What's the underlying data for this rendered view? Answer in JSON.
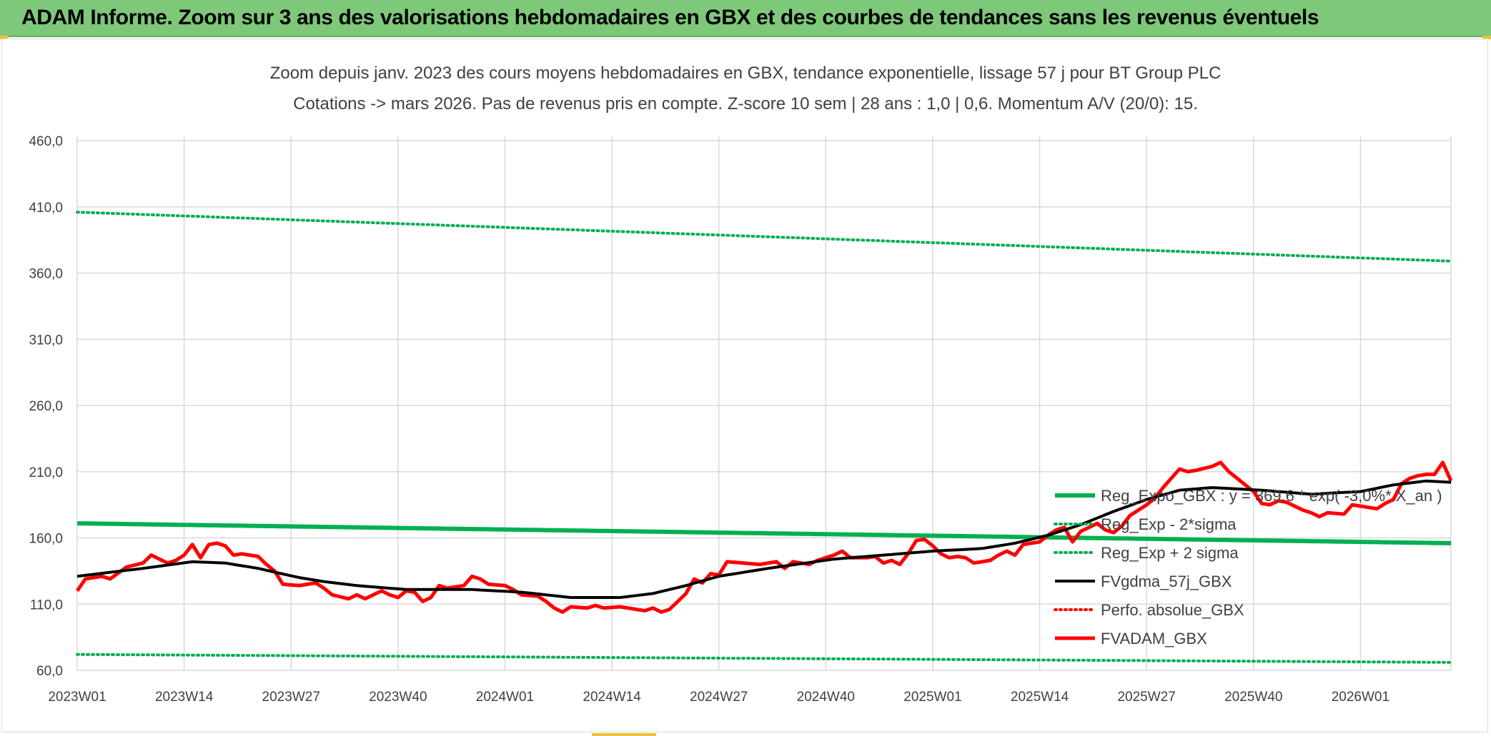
{
  "header": {
    "title": "ADAM Informe. Zoom sur 3 ans des valorisations hebdomadaires en GBX et des courbes de tendances sans les revenus éventuels"
  },
  "colors": {
    "header_bg": "#7ec87a",
    "reg_expo": "#00b050",
    "reg_band": "#00b050",
    "fvgdma": "#000000",
    "perfo": "#ff0000",
    "fvadam": "#ff0000",
    "grid": "#d9d9d9",
    "axis_text": "#404040"
  },
  "chart_data": {
    "type": "line",
    "title": "Zoom depuis janv. 2023 des cours moyens hebdomadaires en GBX, tendance exponentielle, lissage 57 j pour BT Group PLC",
    "subtitle": "Cotations -> mars 2026. Pas de revenus pris en compte. Z-score 10 sem | 28 ans : 1,0 | 0,6. Momentum A/V (20/0): 15.",
    "ylim": [
      60,
      480
    ],
    "yticks": [
      "460,0",
      "410,0",
      "360,0",
      "310,0",
      "260,0",
      "210,0",
      "160,0",
      "110,0",
      "60,0"
    ],
    "ytick_values": [
      460,
      410,
      360,
      310,
      260,
      210,
      160,
      110,
      60
    ],
    "x_count": 168,
    "xticks": [
      "2023W01",
      "2023W14",
      "2023W27",
      "2023W40",
      "2024W01",
      "2024W14",
      "2024W27",
      "2024W40",
      "2025W01",
      "2025W14",
      "2025W27",
      "2025W40",
      "2026W01"
    ],
    "xtick_index": [
      0,
      13,
      26,
      39,
      52,
      65,
      78,
      91,
      104,
      117,
      130,
      143,
      156
    ],
    "grid": true,
    "legend_position": "right",
    "series": [
      {
        "name": "Reg_Expo_GBX : y = 369,6 * exp( -3,0%* X_an )",
        "style": "solid-thick",
        "color": "#00b050",
        "anchors": [
          [
            0,
            171
          ],
          [
            167,
            156
          ]
        ]
      },
      {
        "name": "Reg_Exp - 2*sigma",
        "style": "dotted",
        "color": "#00b050",
        "anchors": [
          [
            0,
            72
          ],
          [
            167,
            66
          ]
        ]
      },
      {
        "name": "Reg_Exp + 2 sigma",
        "style": "dotted",
        "color": "#00b050",
        "anchors": [
          [
            0,
            406
          ],
          [
            167,
            369
          ]
        ]
      },
      {
        "name": "FVgdma_57j_GBX",
        "style": "solid",
        "color": "#000000",
        "anchors": [
          [
            0,
            131
          ],
          [
            8,
            137
          ],
          [
            14,
            142
          ],
          [
            18,
            141
          ],
          [
            22,
            137
          ],
          [
            27,
            130
          ],
          [
            30,
            127
          ],
          [
            34,
            124
          ],
          [
            40,
            121
          ],
          [
            48,
            121
          ],
          [
            54,
            119
          ],
          [
            60,
            115
          ],
          [
            66,
            115
          ],
          [
            70,
            118
          ],
          [
            74,
            124
          ],
          [
            78,
            131
          ],
          [
            84,
            137
          ],
          [
            92,
            144
          ],
          [
            98,
            147
          ],
          [
            104,
            150
          ],
          [
            110,
            152
          ],
          [
            114,
            156
          ],
          [
            118,
            162
          ],
          [
            122,
            170
          ],
          [
            126,
            180
          ],
          [
            130,
            189
          ],
          [
            134,
            196
          ],
          [
            138,
            198
          ],
          [
            144,
            196
          ],
          [
            150,
            193
          ],
          [
            156,
            195
          ],
          [
            160,
            200
          ],
          [
            164,
            203
          ],
          [
            167,
            202
          ]
        ]
      },
      {
        "name": "Perfo. absolue_GBX",
        "style": "dotted",
        "color": "#ff0000",
        "anchors": []
      },
      {
        "name": "FVADAM_GBX",
        "style": "solid-thick",
        "color": "#ff0000",
        "anchors": [
          [
            0,
            120
          ],
          [
            1,
            129
          ],
          [
            3,
            131
          ],
          [
            4,
            129
          ],
          [
            6,
            138
          ],
          [
            8,
            141
          ],
          [
            9,
            147
          ],
          [
            11,
            141
          ],
          [
            12,
            143
          ],
          [
            13,
            147
          ],
          [
            14,
            155
          ],
          [
            15,
            145
          ],
          [
            16,
            155
          ],
          [
            17,
            156
          ],
          [
            18,
            154
          ],
          [
            19,
            147
          ],
          [
            20,
            148
          ],
          [
            22,
            146
          ],
          [
            23,
            140
          ],
          [
            24,
            135
          ],
          [
            25,
            125
          ],
          [
            27,
            124
          ],
          [
            29,
            126
          ],
          [
            30,
            122
          ],
          [
            31,
            117
          ],
          [
            33,
            114
          ],
          [
            34,
            117
          ],
          [
            35,
            114
          ],
          [
            37,
            120
          ],
          [
            38,
            117
          ],
          [
            39,
            115
          ],
          [
            40,
            120
          ],
          [
            41,
            119
          ],
          [
            42,
            112
          ],
          [
            43,
            115
          ],
          [
            44,
            124
          ],
          [
            45,
            122
          ],
          [
            47,
            124
          ],
          [
            48,
            131
          ],
          [
            49,
            129
          ],
          [
            50,
            125
          ],
          [
            52,
            124
          ],
          [
            53,
            121
          ],
          [
            54,
            117
          ],
          [
            56,
            116
          ],
          [
            57,
            112
          ],
          [
            58,
            107
          ],
          [
            59,
            104
          ],
          [
            60,
            108
          ],
          [
            62,
            107
          ],
          [
            63,
            109
          ],
          [
            64,
            107
          ],
          [
            66,
            108
          ],
          [
            68,
            106
          ],
          [
            69,
            105
          ],
          [
            70,
            107
          ],
          [
            71,
            104
          ],
          [
            72,
            106
          ],
          [
            74,
            118
          ],
          [
            75,
            129
          ],
          [
            76,
            126
          ],
          [
            77,
            133
          ],
          [
            78,
            132
          ],
          [
            79,
            142
          ],
          [
            81,
            141
          ],
          [
            83,
            140
          ],
          [
            85,
            142
          ],
          [
            86,
            137
          ],
          [
            87,
            142
          ],
          [
            89,
            140
          ],
          [
            90,
            143
          ],
          [
            92,
            147
          ],
          [
            93,
            150
          ],
          [
            94,
            145
          ],
          [
            96,
            145
          ],
          [
            97,
            146
          ],
          [
            98,
            141
          ],
          [
            99,
            143
          ],
          [
            100,
            140
          ],
          [
            101,
            148
          ],
          [
            102,
            158
          ],
          [
            103,
            159
          ],
          [
            104,
            154
          ],
          [
            105,
            148
          ],
          [
            106,
            145
          ],
          [
            107,
            146
          ],
          [
            108,
            145
          ],
          [
            109,
            141
          ],
          [
            111,
            143
          ],
          [
            112,
            147
          ],
          [
            113,
            150
          ],
          [
            114,
            147
          ],
          [
            115,
            155
          ],
          [
            116,
            156
          ],
          [
            117,
            157
          ],
          [
            118,
            162
          ],
          [
            119,
            166
          ],
          [
            120,
            168
          ],
          [
            121,
            157
          ],
          [
            122,
            165
          ],
          [
            124,
            171
          ],
          [
            125,
            166
          ],
          [
            126,
            164
          ],
          [
            127,
            169
          ],
          [
            128,
            177
          ],
          [
            130,
            185
          ],
          [
            131,
            190
          ],
          [
            132,
            198
          ],
          [
            133,
            205
          ],
          [
            134,
            212
          ],
          [
            135,
            210
          ],
          [
            136,
            211
          ],
          [
            138,
            214
          ],
          [
            139,
            217
          ],
          [
            140,
            210
          ],
          [
            141,
            205
          ],
          [
            142,
            200
          ],
          [
            143,
            195
          ],
          [
            144,
            186
          ],
          [
            145,
            185
          ],
          [
            146,
            188
          ],
          [
            147,
            187
          ],
          [
            148,
            184
          ],
          [
            149,
            181
          ],
          [
            150,
            179
          ],
          [
            151,
            176
          ],
          [
            152,
            179
          ],
          [
            154,
            178
          ],
          [
            155,
            185
          ],
          [
            156,
            184
          ],
          [
            157,
            183
          ],
          [
            158,
            182
          ],
          [
            159,
            186
          ],
          [
            160,
            189
          ],
          [
            161,
            201
          ],
          [
            162,
            205
          ],
          [
            163,
            207
          ],
          [
            164,
            208
          ],
          [
            165,
            208
          ],
          [
            166,
            217
          ],
          [
            167,
            203
          ]
        ]
      }
    ]
  }
}
